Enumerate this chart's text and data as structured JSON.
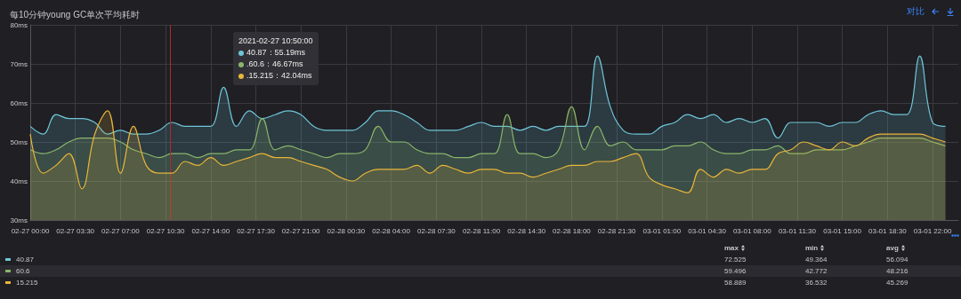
{
  "chart_data": {
    "type": "area",
    "title": "每10分钟young GC单次平均耗时",
    "x": [
      "2021-02-27T00:00",
      "2021-02-27T01:00",
      "2021-02-27T02:00",
      "2021-02-27T03:00",
      "2021-02-27T04:00",
      "2021-02-27T05:00",
      "2021-02-27T06:00",
      "2021-02-27T07:00",
      "2021-02-27T08:00",
      "2021-02-27T09:00",
      "2021-02-27T10:00",
      "2021-02-27T11:00",
      "2021-02-27T12:00",
      "2021-02-27T13:00",
      "2021-02-27T14:00",
      "2021-02-27T15:00",
      "2021-02-27T16:00",
      "2021-02-27T17:00",
      "2021-02-27T18:00",
      "2021-02-27T19:00",
      "2021-02-27T20:00",
      "2021-02-27T21:00",
      "2021-02-27T22:00",
      "2021-02-27T23:00",
      "2021-02-28T00:00",
      "2021-02-28T01:00",
      "2021-02-28T02:00",
      "2021-02-28T03:00",
      "2021-02-28T04:00",
      "2021-02-28T05:00",
      "2021-02-28T06:00",
      "2021-02-28T07:00",
      "2021-02-28T08:00",
      "2021-02-28T09:00",
      "2021-02-28T10:00",
      "2021-02-28T11:00",
      "2021-02-28T12:00",
      "2021-02-28T13:00",
      "2021-02-28T14:00",
      "2021-02-28T15:00",
      "2021-02-28T16:00",
      "2021-02-28T17:00",
      "2021-02-28T18:00",
      "2021-02-28T19:00",
      "2021-02-28T20:00",
      "2021-02-28T21:00",
      "2021-02-28T22:00",
      "2021-02-28T23:00",
      "2021-03-01T00:00",
      "2021-03-01T01:00",
      "2021-03-01T02:00",
      "2021-03-01T03:00",
      "2021-03-01T04:00",
      "2021-03-01T05:00",
      "2021-03-01T06:00",
      "2021-03-01T07:00",
      "2021-03-01T08:00",
      "2021-03-01T09:00",
      "2021-03-01T10:00",
      "2021-03-01T11:00",
      "2021-03-01T12:00",
      "2021-03-01T13:00",
      "2021-03-01T14:00",
      "2021-03-01T15:00",
      "2021-03-01T16:00",
      "2021-03-01T17:00",
      "2021-03-01T18:00",
      "2021-03-01T19:00",
      "2021-03-01T20:00",
      "2021-03-01T21:00",
      "2021-03-01T22:00",
      "2021-03-01T23:00"
    ],
    "series": [
      {
        "name": "40.87",
        "color": "#6ec6d8",
        "values": [
          54,
          52,
          57,
          56,
          56,
          55,
          52,
          53,
          52,
          52,
          53,
          55,
          54,
          54,
          54,
          64,
          54,
          58,
          56,
          57,
          58,
          57,
          54,
          53,
          53,
          53,
          55,
          58,
          58,
          57,
          55,
          53,
          53,
          53,
          54,
          55,
          54,
          54,
          53,
          54,
          53,
          54,
          54,
          54,
          72,
          59,
          53,
          52,
          52,
          54,
          55,
          57,
          56,
          57,
          55,
          56,
          55,
          56,
          51,
          55,
          55,
          55,
          54,
          55,
          55,
          57,
          58,
          57,
          57,
          72,
          55,
          54
        ]
      },
      {
        "name": "60.6",
        "color": "#8ab66a",
        "values": [
          48,
          47,
          48,
          50,
          51,
          51,
          51,
          50,
          48,
          47,
          46,
          47,
          47,
          46,
          47,
          47,
          48,
          48,
          56,
          48,
          49,
          48,
          47,
          46,
          47,
          47,
          48,
          54,
          50,
          50,
          48,
          47,
          47,
          46,
          46,
          47,
          47,
          57,
          47,
          47,
          46,
          48,
          59,
          48,
          54,
          49,
          50,
          48,
          48,
          48,
          49,
          49,
          50,
          48,
          47,
          47,
          48,
          48,
          49,
          47,
          47,
          48,
          48,
          48,
          49,
          50,
          51,
          51,
          51,
          51,
          50,
          49
        ]
      },
      {
        "name": "15.215",
        "color": "#e8b53a",
        "values": [
          52,
          42,
          44,
          47,
          38,
          52,
          58,
          42,
          54,
          44,
          42,
          42,
          45,
          44,
          46,
          44,
          45,
          46,
          47,
          46,
          46,
          45,
          44,
          43,
          41,
          40,
          42,
          43,
          43,
          43,
          44,
          42,
          44,
          43,
          42,
          43,
          43,
          42,
          42,
          41,
          42,
          43,
          44,
          44,
          45,
          45,
          46,
          47,
          41,
          39,
          38,
          37,
          43,
          41,
          43,
          42,
          43,
          43,
          47,
          48,
          50,
          49,
          48,
          50,
          49,
          51,
          52,
          52,
          52,
          52,
          51,
          50
        ]
      }
    ],
    "xlim": [
      "2021-02-27T00:00",
      "2021-03-02T00:00"
    ],
    "xticks": [
      {
        "value": "2021-02-27T00:00",
        "label": "02-27 00:00"
      },
      {
        "value": "2021-02-27T03:30",
        "label": "02-27 03:30"
      },
      {
        "value": "2021-02-27T07:00",
        "label": "02-27 07:00"
      },
      {
        "value": "2021-02-27T10:30",
        "label": "02-27 10:30"
      },
      {
        "value": "2021-02-27T14:00",
        "label": "02-27 14:00"
      },
      {
        "value": "2021-02-27T17:30",
        "label": "02-27 17:30"
      },
      {
        "value": "2021-02-27T21:00",
        "label": "02-27 21:00"
      },
      {
        "value": "2021-02-28T00:30",
        "label": "02-28 00:30"
      },
      {
        "value": "2021-02-28T04:00",
        "label": "02-28 04:00"
      },
      {
        "value": "2021-02-28T07:30",
        "label": "02-28 07:30"
      },
      {
        "value": "2021-02-28T11:00",
        "label": "02-28 11:00"
      },
      {
        "value": "2021-02-28T14:30",
        "label": "02-28 14:30"
      },
      {
        "value": "2021-02-28T18:00",
        "label": "02-28 18:00"
      },
      {
        "value": "2021-02-28T21:30",
        "label": "02-28 21:30"
      },
      {
        "value": "2021-03-01T01:00",
        "label": "03-01 01:00"
      },
      {
        "value": "2021-03-01T04:30",
        "label": "03-01 04:30"
      },
      {
        "value": "2021-03-01T08:00",
        "label": "03-01 08:00"
      },
      {
        "value": "2021-03-01T11:30",
        "label": "03-01 11:30"
      },
      {
        "value": "2021-03-01T15:00",
        "label": "03-01 15:00"
      },
      {
        "value": "2021-03-01T18:30",
        "label": "03-01 18:30"
      },
      {
        "value": "2021-03-01T22:00",
        "label": "03-01 22:00"
      }
    ],
    "ylim": [
      30,
      80
    ],
    "yticks": [
      {
        "value": 30,
        "label": "30ms"
      },
      {
        "value": 40,
        "label": "40ms"
      },
      {
        "value": 50,
        "label": "50ms"
      },
      {
        "value": 60,
        "label": "60ms"
      },
      {
        "value": 70,
        "label": "70ms"
      },
      {
        "value": 80,
        "label": "80ms"
      }
    ],
    "ref_lines": [
      {
        "axis": "x",
        "value": "2021-02-27T10:50",
        "color": "#b3282d"
      }
    ],
    "grid": true,
    "legend": "bottom",
    "marker": "none",
    "line_style": "solid",
    "annotations": [
      "对比",
      "2021-02-27 10:50:00",
      "40.87：55.19ms",
      ".60.6：46.67ms",
      ".15.215：42.04ms",
      "max",
      "min",
      "avg",
      "72.525",
      "49.364",
      "56.094",
      "59.496",
      "42.772",
      "48.216",
      "58.889",
      "36.532",
      "45.269"
    ]
  }
}
